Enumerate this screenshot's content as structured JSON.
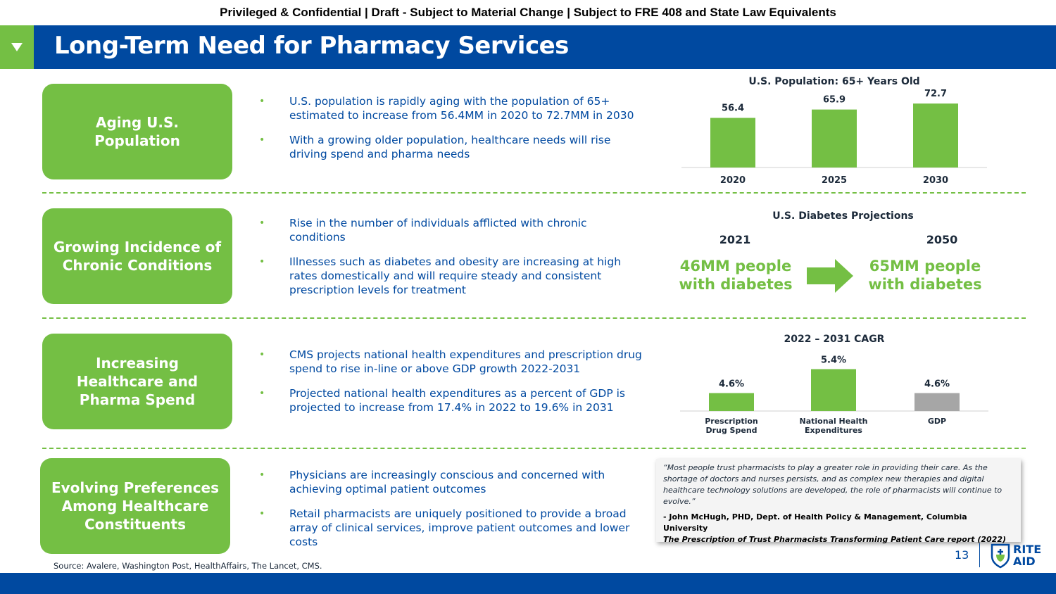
{
  "header": {
    "confidential": "Privileged & Confidential | Draft - Subject to Material Change | Subject to FRE 408 and State Law Equivalents",
    "title": "Long-Term Need for Pharmacy Services"
  },
  "sections": [
    {
      "label": "Aging U.S. Population",
      "bullets": [
        "U.S. population is rapidly aging with the population of 65+ estimated to increase from 56.4MM in 2020 to 72.7MM in 2030",
        "With a growing older population, healthcare needs will rise driving spend and pharma needs"
      ]
    },
    {
      "label": "Growing Incidence of Chronic Conditions",
      "bullets": [
        "Rise in the number of individuals afflicted with chronic conditions",
        "Illnesses such as diabetes and obesity are increasing at high rates domestically and will require steady and consistent prescription levels for treatment"
      ]
    },
    {
      "label": "Increasing Healthcare and Pharma Spend",
      "bullets": [
        "CMS projects national health expenditures and prescription drug spend to rise in-line or above GDP growth 2022-2031",
        "Projected national health expenditures as a percent of GDP is projected to increase from 17.4% in 2022 to 19.6% in 2031"
      ]
    },
    {
      "label": "Evolving Preferences Among Healthcare Constituents",
      "bullets": [
        "Physicians are increasingly conscious and concerned with achieving optimal patient outcomes",
        "Retail pharmacists are uniquely positioned to provide a broad array of clinical services, improve patient outcomes and lower costs"
      ]
    }
  ],
  "chart_data": [
    {
      "type": "bar",
      "title": "U.S. Population: 65+ Years Old",
      "categories": [
        "2020",
        "2025",
        "2030"
      ],
      "values": [
        56.4,
        65.9,
        72.7
      ],
      "value_labels": [
        "56.4",
        "65.9",
        "72.7"
      ],
      "ylim": [
        0,
        80
      ],
      "colors": [
        "#74bf44",
        "#74bf44",
        "#74bf44"
      ]
    },
    {
      "type": "bar",
      "title": "2022 – 2031 CAGR",
      "categories": [
        "Prescription Drug Spend",
        "National Health Expenditures",
        "GDP"
      ],
      "category_lines": [
        [
          "Prescription",
          "Drug Spend"
        ],
        [
          "National Health",
          "Expenditures"
        ],
        [
          "GDP"
        ]
      ],
      "values": [
        4.6,
        5.4,
        4.6
      ],
      "value_labels": [
        "4.6%",
        "5.4%",
        "4.6%"
      ],
      "colors": [
        "#74bf44",
        "#74bf44",
        "#a6a6a6"
      ]
    }
  ],
  "diabetes": {
    "title": "U.S. Diabetes Projections",
    "left_year": "2021",
    "left_value_line1": "46MM people",
    "left_value_line2": "with diabetes",
    "right_year": "2050",
    "right_value_line1": "65MM people",
    "right_value_line2": "with diabetes"
  },
  "quote": {
    "text": "“Most people trust pharmacists to play a greater role in providing their care. As the shortage of doctors and nurses persists, and as complex new therapies and digital healthcare technology solutions are developed, the role of pharmacists will continue to evolve.”",
    "attribution": "- John McHugh, PHD, Dept. of Health Policy & Management, Columbia University",
    "report": "The Prescription of Trust Pharmacists Transforming Patient Care report (2022)"
  },
  "footer": {
    "source": "Source: Avalere, Washington Post, HealthAffairs, The Lancet, CMS.",
    "page_number": "13",
    "logo_line1": "RITE",
    "logo_line2": "AID"
  },
  "colors": {
    "brand_blue": "#0049a0",
    "brand_green": "#74bf44",
    "gdp_gray": "#a6a6a6"
  }
}
